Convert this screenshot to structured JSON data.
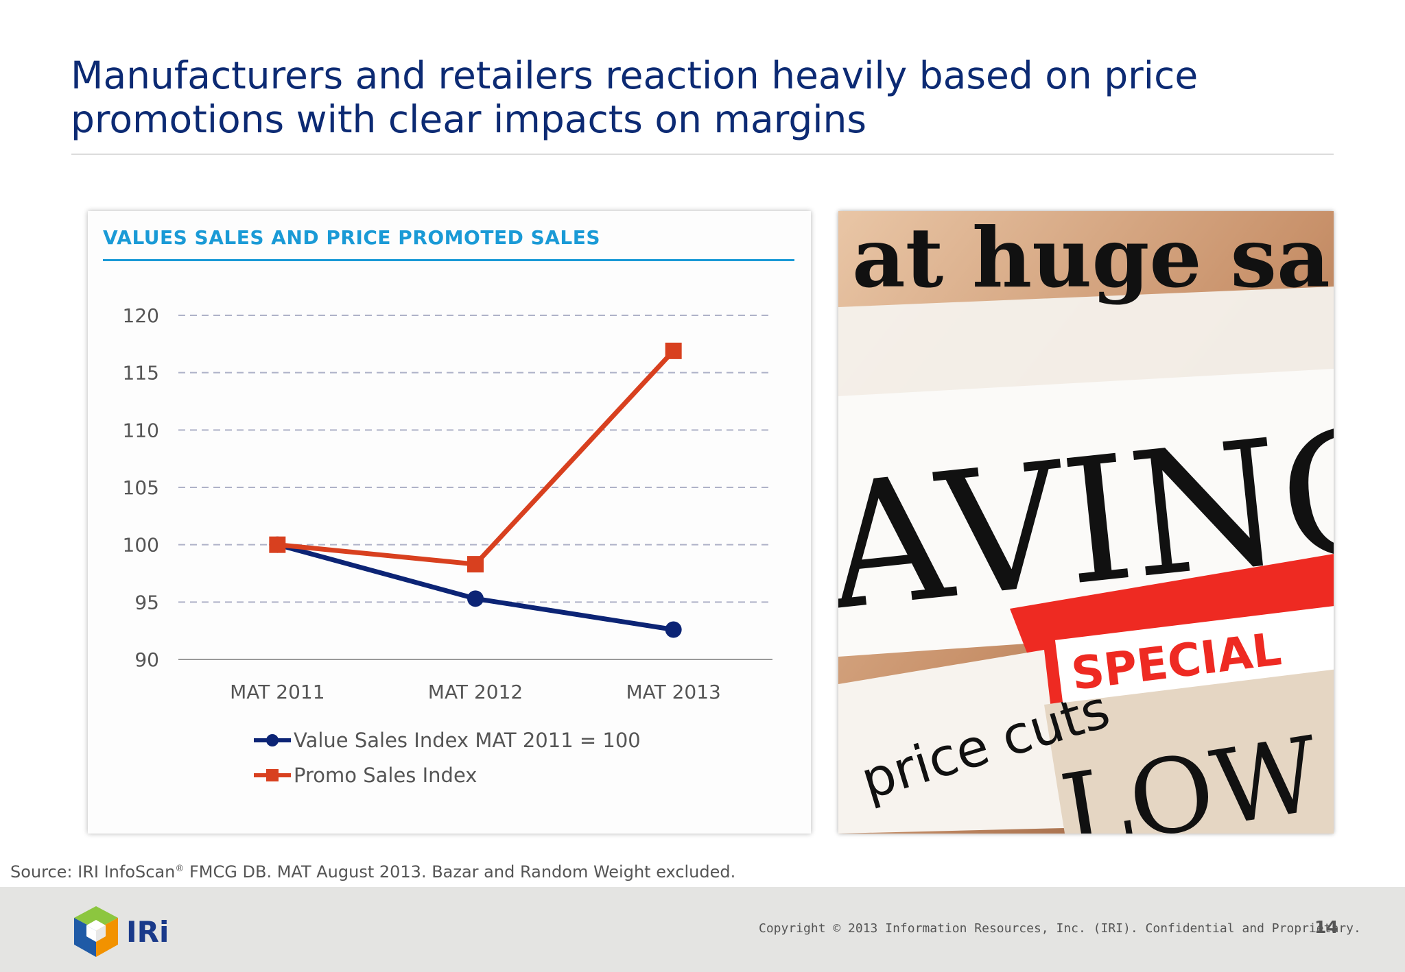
{
  "slide": {
    "title": "Manufacturers and retailers reaction heavily based on price promotions with clear impacts on margins",
    "source_text": "Source: IRI InfoScan",
    "source_sup": "®",
    "source_rest": " FMCG DB. MAT August 2013. Bazar and Random Weight excluded.",
    "copyright": "Copyright © 2013 Information Resources, Inc. (IRI). Confidential and Proprietary.",
    "page_number": "14",
    "logo_text": "IRi"
  },
  "photo": {
    "words": [
      "at huge sa",
      "AVING",
      "price cuts",
      "SPECIAL",
      "LOW P"
    ]
  },
  "chart_data": {
    "type": "line",
    "title": "VALUES SALES AND PRICE PROMOTED SALES",
    "categories": [
      "MAT 2011",
      "MAT 2012",
      "MAT 2013"
    ],
    "series": [
      {
        "name": "Value Sales Index MAT 2011 = 100",
        "values": [
          100,
          95.3,
          92.6
        ],
        "color": "#0c2475",
        "marker": "circle"
      },
      {
        "name": "Promo Sales Index",
        "values": [
          100,
          98.3,
          116.9
        ],
        "color": "#d8401f",
        "marker": "square"
      }
    ],
    "ylim": [
      90,
      120
    ],
    "yticks": [
      90,
      95,
      100,
      105,
      110,
      115,
      120
    ],
    "grid": true,
    "legend": "bottom"
  }
}
